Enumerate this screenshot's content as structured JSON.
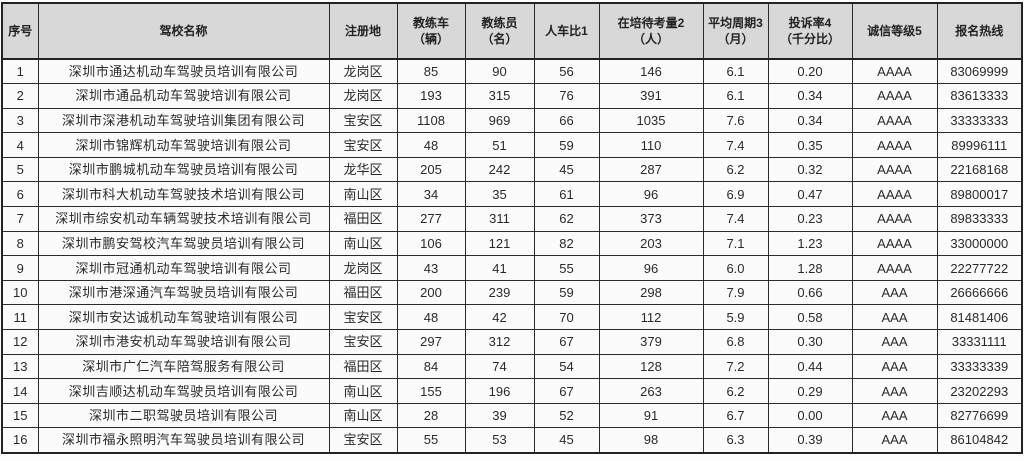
{
  "theme": {
    "header_bg": "#d8d8d8",
    "row_bg": "#fbfbfb",
    "border_color": "#2b2b2b",
    "text_color": "#2a2a2a"
  },
  "table": {
    "columns": [
      {
        "label": "序号"
      },
      {
        "label": "驾校名称"
      },
      {
        "label": "注册地"
      },
      {
        "label": "教练车\n（辆）"
      },
      {
        "label": "教练员\n（名）"
      },
      {
        "label": "人车比1"
      },
      {
        "label": "在培待考量2\n（人）"
      },
      {
        "label": "平均周期3\n（月）"
      },
      {
        "label": "投诉率4\n（千分比）"
      },
      {
        "label": "诚信等级5"
      },
      {
        "label": "报名热线"
      }
    ],
    "rows": [
      [
        "1",
        "深圳市通达机动车驾驶员培训有限公司",
        "龙岗区",
        "85",
        "90",
        "56",
        "146",
        "6.1",
        "0.20",
        "AAAA",
        "83069999"
      ],
      [
        "2",
        "深圳市通品机动车驾驶培训有限公司",
        "龙岗区",
        "193",
        "315",
        "76",
        "391",
        "6.1",
        "0.34",
        "AAAA",
        "83613333"
      ],
      [
        "3",
        "深圳市深港机动车驾驶培训集团有限公司",
        "宝安区",
        "1108",
        "969",
        "66",
        "1035",
        "7.6",
        "0.34",
        "AAAA",
        "33333333"
      ],
      [
        "4",
        "深圳市锦辉机动车驾驶培训有限公司",
        "宝安区",
        "48",
        "51",
        "59",
        "110",
        "7.4",
        "0.35",
        "AAAA",
        "89996111"
      ],
      [
        "5",
        "深圳市鹏城机动车驾驶员培训有限公司",
        "龙华区",
        "205",
        "242",
        "45",
        "287",
        "6.2",
        "0.32",
        "AAAA",
        "22168168"
      ],
      [
        "6",
        "深圳市科大机动车驾驶技术培训有限公司",
        "南山区",
        "34",
        "35",
        "61",
        "96",
        "6.9",
        "0.47",
        "AAAA",
        "89800017"
      ],
      [
        "7",
        "深圳市综安机动车辆驾驶技术培训有限公司",
        "福田区",
        "277",
        "311",
        "62",
        "373",
        "7.4",
        "0.23",
        "AAAA",
        "89833333"
      ],
      [
        "8",
        "深圳市鹏安驾校汽车驾驶员培训有限公司",
        "南山区",
        "106",
        "121",
        "82",
        "203",
        "7.1",
        "1.23",
        "AAAA",
        "33000000"
      ],
      [
        "9",
        "深圳市冠通机动车驾驶培训有限公司",
        "龙岗区",
        "43",
        "41",
        "55",
        "96",
        "6.0",
        "1.28",
        "AAAA",
        "22277722"
      ],
      [
        "10",
        "深圳市港深通汽车驾驶员培训有限公司",
        "福田区",
        "200",
        "239",
        "59",
        "298",
        "7.9",
        "0.66",
        "AAA",
        "26666666"
      ],
      [
        "11",
        "深圳市安达诚机动车驾驶培训有限公司",
        "宝安区",
        "48",
        "42",
        "70",
        "112",
        "5.9",
        "0.58",
        "AAA",
        "81481406"
      ],
      [
        "12",
        "深圳市港安机动车驾驶培训有限公司",
        "宝安区",
        "297",
        "312",
        "67",
        "379",
        "6.8",
        "0.30",
        "AAA",
        "33331111"
      ],
      [
        "13",
        "深圳市广仁汽车陪驾服务有限公司",
        "福田区",
        "84",
        "74",
        "54",
        "128",
        "7.2",
        "0.44",
        "AAA",
        "33333339"
      ],
      [
        "14",
        "深圳吉顺达机动车驾驶员培训有限公司",
        "南山区",
        "155",
        "196",
        "67",
        "263",
        "6.2",
        "0.29",
        "AAA",
        "23202293"
      ],
      [
        "15",
        "深圳市二职驾驶员培训有限公司",
        "南山区",
        "28",
        "39",
        "52",
        "91",
        "6.7",
        "0.00",
        "AAA",
        "82776699"
      ],
      [
        "16",
        "深圳市福永照明汽车驾驶员培训有限公司",
        "宝安区",
        "55",
        "53",
        "45",
        "98",
        "6.3",
        "0.39",
        "AAA",
        "86104842"
      ]
    ]
  }
}
